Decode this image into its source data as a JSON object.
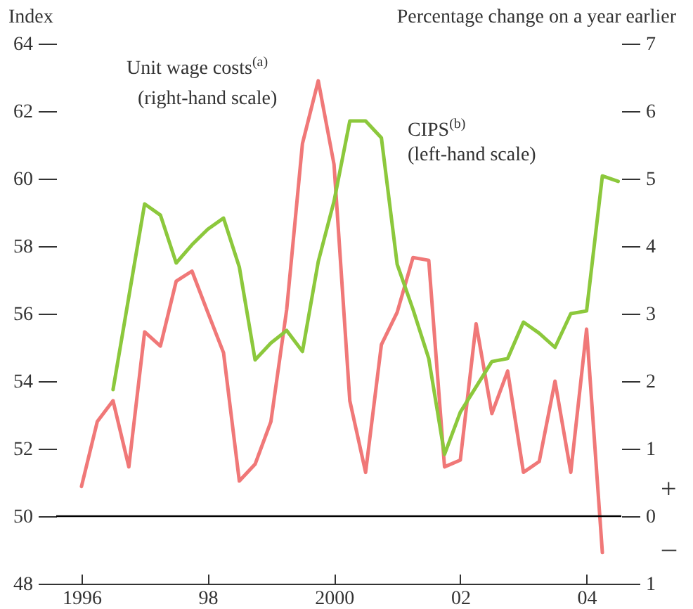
{
  "chart_data": {
    "type": "line",
    "ylabel": "Index",
    "y2label": "Percentage change on a year earlier",
    "xlim": [
      1995.6,
      2004.55
    ],
    "xticks": [
      {
        "value": 1996,
        "label": "1996"
      },
      {
        "value": 1998,
        "label": "98"
      },
      {
        "value": 2000,
        "label": "2000"
      },
      {
        "value": 2002,
        "label": "02"
      },
      {
        "value": 2004,
        "label": "04"
      }
    ],
    "ylim": [
      48,
      64
    ],
    "yticks": [
      48,
      50,
      52,
      54,
      56,
      58,
      60,
      62,
      64
    ],
    "y2lim": [
      -1,
      7
    ],
    "y2ticks": [
      {
        "value": -1,
        "label": "1"
      },
      0,
      1,
      2,
      3,
      4,
      5,
      6,
      7
    ],
    "series": [
      {
        "name": "Unit wage costs$^{(a)}$",
        "color": "#f07878",
        "axis": "y2",
        "x": [
          1996,
          1996.25,
          1996.5,
          1996.75,
          1997,
          1997.25,
          1997.5,
          1997.75,
          1998,
          1998.25,
          1998.5,
          1998.75,
          1999,
          1999.25,
          1999.5,
          1999.75,
          2000,
          2000.25,
          2000.5,
          2000.75,
          2001,
          2001.25,
          2001.5,
          2001.75,
          2002,
          2002.25,
          2002.5,
          2002.75,
          2003,
          2003.25,
          2003.5,
          2003.75,
          2004,
          2004.25
        ],
        "values": [
          0.44,
          1.4,
          1.71,
          0.73,
          2.73,
          2.52,
          3.48,
          3.63,
          3.02,
          2.42,
          0.52,
          0.77,
          1.4,
          3.06,
          5.52,
          6.45,
          5.21,
          1.71,
          0.65,
          2.54,
          3.02,
          3.83,
          3.79,
          0.73,
          0.83,
          2.85,
          1.52,
          2.15,
          0.65,
          0.81,
          2.0,
          0.65,
          2.77,
          -0.54
        ]
      },
      {
        "name": "CIPS$^{(b)}$",
        "color": "#8cc83c",
        "x": [
          1996.5,
          1996.75,
          1997,
          1997.25,
          1997.5,
          1997.75,
          1998,
          1998.25,
          1998.5,
          1998.75,
          1999,
          1999.25,
          1999.5,
          1999.75,
          2000,
          2000.25,
          2000.5,
          2000.75,
          2001,
          2001.25,
          2001.5,
          2001.75,
          2002,
          2002.25,
          2002.5,
          2002.75,
          2003,
          2003.25,
          2003.5,
          2003.75,
          2004,
          2004.25,
          2004.5
        ],
        "values": [
          53.75,
          56.5,
          59.25,
          58.92,
          57.5,
          58.04,
          58.5,
          58.83,
          57.38,
          54.63,
          55.13,
          55.5,
          54.88,
          57.54,
          59.33,
          61.71,
          61.71,
          61.21,
          57.46,
          56.13,
          54.67,
          51.83,
          53.08,
          53.83,
          54.58,
          54.67,
          55.75,
          55.42,
          55.0,
          56.0,
          56.08,
          60.08,
          59.92
        ]
      }
    ],
    "ref_lines": [
      {
        "axis": "y2",
        "value": 0,
        "color": "#000000"
      }
    ],
    "annotations": [
      "(right-hand scale)",
      "(left-hand scale)",
      "+",
      "–"
    ],
    "legend": false,
    "grid": false,
    "marker": "none",
    "line_style": "solid"
  }
}
